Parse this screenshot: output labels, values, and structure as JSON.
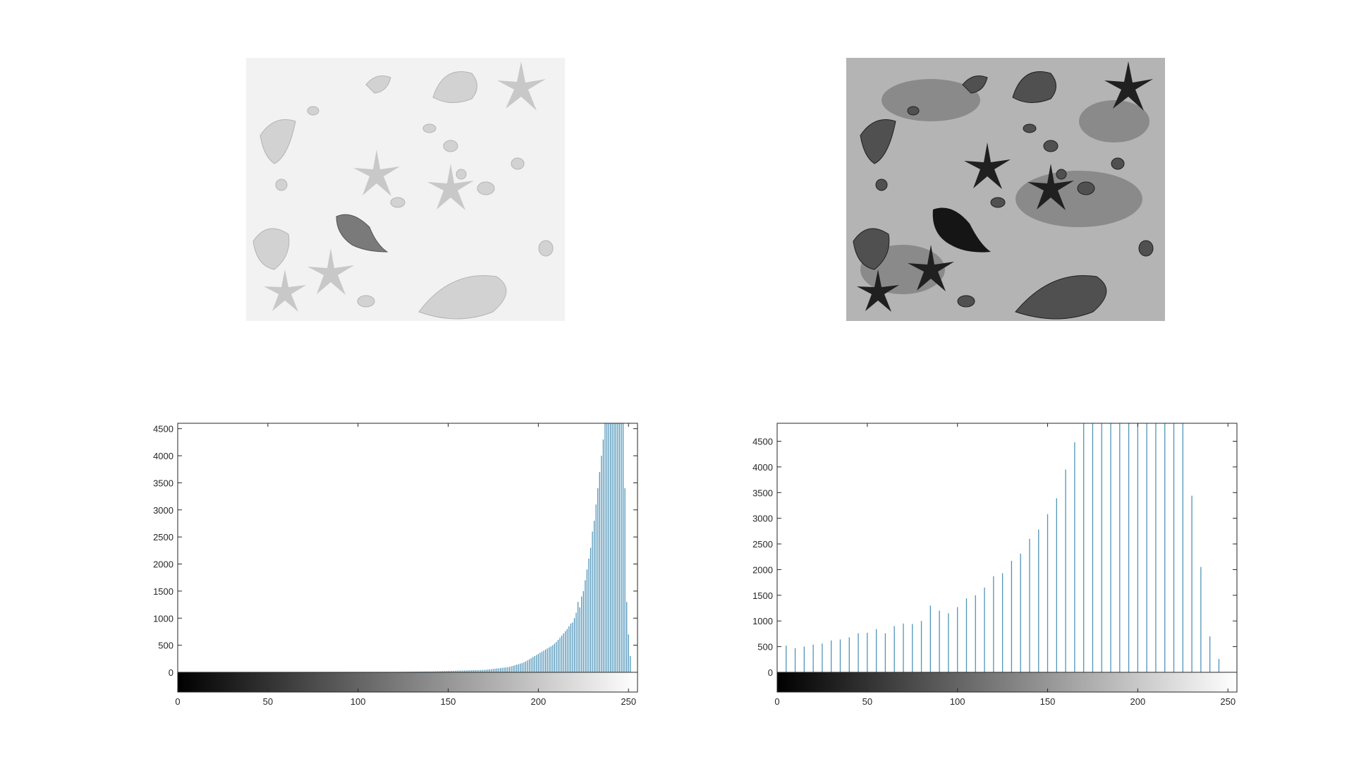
{
  "figure": {
    "images": [
      {
        "name": "low-contrast-shells-image",
        "tone": "light"
      },
      {
        "name": "equalized-shells-image",
        "tone": "high-contrast"
      }
    ]
  },
  "colors": {
    "bar": "#4f94b8",
    "axis": "#262626",
    "background": "#ffffff"
  },
  "chart_data": [
    {
      "type": "bar",
      "title": "",
      "xlabel": "",
      "ylabel": "",
      "xlim": [
        0,
        255
      ],
      "ylim": [
        0,
        4600
      ],
      "xticks": [
        0,
        50,
        100,
        150,
        200,
        250
      ],
      "yticks": [
        0,
        500,
        1000,
        1500,
        2000,
        2500,
        3000,
        3500,
        4000,
        4500
      ],
      "colorbar": "grayscale 0-255 below x-axis",
      "grid": false,
      "series": [
        {
          "x_start": 110,
          "x_step": 1,
          "values": [
            2,
            3,
            3,
            3,
            4,
            4,
            4,
            5,
            5,
            6,
            6,
            7,
            7,
            8,
            8,
            9,
            9,
            10,
            10,
            11,
            11,
            12,
            12,
            13,
            13,
            14,
            14,
            15,
            15,
            16,
            16,
            17,
            17,
            18,
            19,
            20,
            21,
            22,
            23,
            24,
            25,
            26,
            27,
            28,
            29,
            30,
            31,
            32,
            33,
            34,
            35,
            36,
            37,
            38,
            39,
            40,
            41,
            42,
            43,
            44,
            45,
            48,
            52,
            55,
            58,
            62,
            66,
            70,
            74,
            78,
            82,
            86,
            90,
            95,
            100,
            110,
            120,
            130,
            140,
            150,
            160,
            170,
            185,
            200,
            220,
            240,
            260,
            280,
            300,
            320,
            340,
            360,
            380,
            400,
            420,
            440,
            460,
            480,
            500,
            530,
            560,
            600,
            640,
            680,
            720,
            760,
            800,
            850,
            900,
            920,
            1000,
            1100,
            1300,
            1200,
            1400,
            1500,
            1700,
            1900,
            2100,
            2300,
            2600,
            2800,
            3100,
            3400,
            3700,
            4000,
            4300,
            4600,
            4600,
            4600,
            4600,
            4600,
            4600,
            4600,
            4600,
            4600,
            4600,
            4600,
            3400,
            1300,
            700,
            300
          ]
        }
      ]
    },
    {
      "type": "bar",
      "title": "",
      "xlabel": "",
      "ylabel": "",
      "xlim": [
        0,
        255
      ],
      "ylim": [
        0,
        4850
      ],
      "xticks": [
        0,
        50,
        100,
        150,
        200,
        250
      ],
      "yticks": [
        0,
        500,
        1000,
        1500,
        2000,
        2500,
        3000,
        3500,
        4000,
        4500
      ],
      "colorbar": "grayscale 0-255 below x-axis",
      "grid": false,
      "series": [
        {
          "x": [
            5,
            10,
            15,
            20,
            25,
            30,
            35,
            40,
            45,
            50,
            55,
            60,
            65,
            70,
            75,
            80,
            85,
            90,
            95,
            100,
            105,
            110,
            115,
            120,
            125,
            130,
            135,
            140,
            145,
            150,
            155,
            160,
            165,
            170,
            175,
            180,
            185,
            190,
            195,
            200,
            205,
            210,
            215,
            220,
            225,
            230,
            235,
            240,
            245
          ],
          "values": [
            520,
            470,
            500,
            540,
            560,
            620,
            640,
            680,
            760,
            770,
            840,
            760,
            900,
            950,
            940,
            1000,
            1300,
            1200,
            1150,
            1270,
            1440,
            1500,
            1650,
            1870,
            1930,
            2170,
            2310,
            2600,
            2780,
            3080,
            3390,
            3950,
            4480,
            4850,
            4850,
            4850,
            4850,
            4850,
            4850,
            4850,
            4850,
            4850,
            4850,
            4850,
            4850,
            3440,
            2050,
            700,
            260
          ]
        }
      ]
    }
  ]
}
